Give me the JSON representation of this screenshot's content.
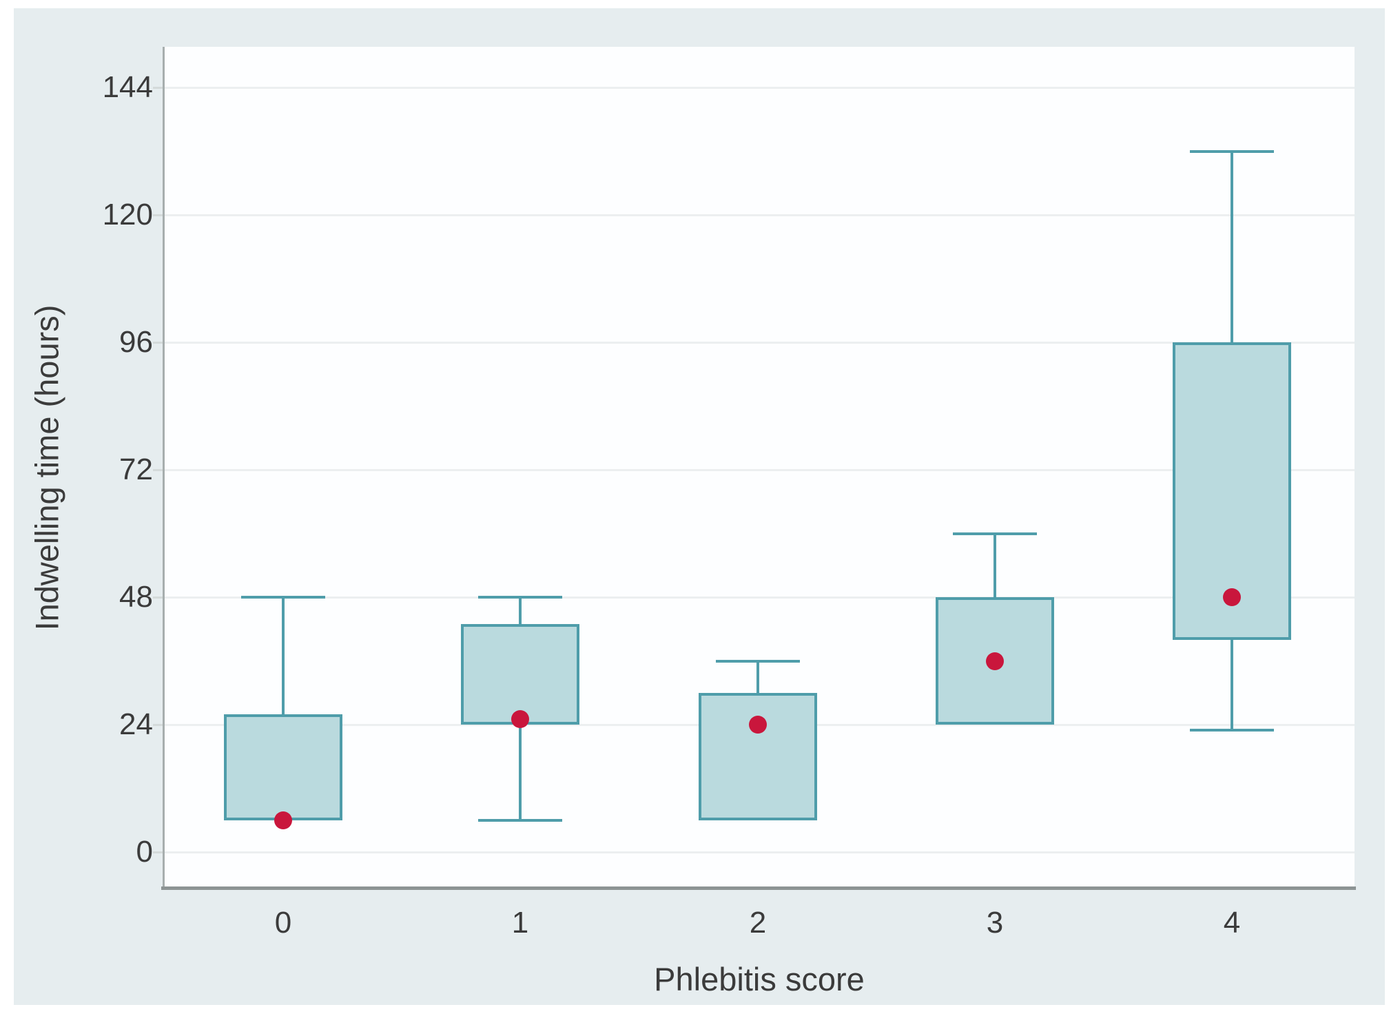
{
  "chart_data": {
    "type": "box",
    "title": "",
    "xlabel": "Phlebitis score",
    "ylabel": "Indwelling time (hours)",
    "categories": [
      "0",
      "1",
      "2",
      "3",
      "4"
    ],
    "y_ticks": [
      0,
      24,
      48,
      72,
      96,
      120,
      144
    ],
    "ylim": [
      -7,
      152
    ],
    "grid": "horizontal",
    "legend": "none",
    "marker_meaning": "median",
    "boxes": [
      {
        "category": "0",
        "min": 6,
        "q1": 6,
        "median": 6,
        "q3": 26,
        "max": 48,
        "marker": 6
      },
      {
        "category": "1",
        "min": 6,
        "q1": 24,
        "median": 25,
        "q3": 43,
        "max": 48,
        "marker": 25
      },
      {
        "category": "2",
        "min": 6,
        "q1": 6,
        "median": 24,
        "q3": 30,
        "max": 36,
        "marker": 24
      },
      {
        "category": "3",
        "min": 24,
        "q1": 24,
        "median": 36,
        "q3": 48,
        "max": 60,
        "marker": 36
      },
      {
        "category": "4",
        "min": 23,
        "q1": 40,
        "median": 48,
        "q3": 96,
        "max": 132,
        "marker": 48
      }
    ],
    "colors": {
      "box_fill": "#badade",
      "box_border": "#4f9daa",
      "whisker": "#4f9daa",
      "median_marker": "#c9163c",
      "plot_bg": "#fdfeff",
      "panel_bg": "#e6edef",
      "gridline": "#eceff0",
      "x_axis_line": "#8d9494",
      "y_axis_line": "#a7aeae",
      "tick_mark": "#d4dada",
      "text": "#3b3b3b"
    }
  }
}
